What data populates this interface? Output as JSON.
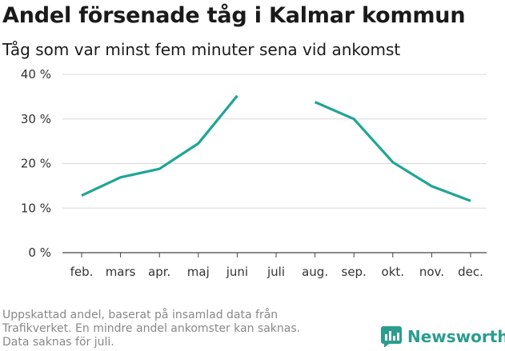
{
  "header": {
    "title": "Andel försenade tåg i Kalmar kommun",
    "subtitle": "Tåg som var minst fem minuter sena vid ankomst"
  },
  "footnote": {
    "lines": [
      "Uppskattad andel, baserat på insamlad data från",
      "Trafikverket. En mindre andel ankomster kan saknas.",
      "Data saknas för juli."
    ]
  },
  "brand": {
    "name": "Newsworthy",
    "icon": "bar-chart-icon",
    "color": "#2a9d8f"
  },
  "chart_data": {
    "type": "line",
    "categories": [
      "feb.",
      "mars",
      "apr.",
      "maj",
      "juni",
      "juli",
      "aug.",
      "sep.",
      "okt.",
      "nov.",
      "dec."
    ],
    "series": [
      {
        "values": [
          12.8,
          16.9,
          18.8,
          24.5,
          35.2,
          null,
          33.8,
          30.0,
          20.3,
          14.9,
          11.6
        ],
        "color": "#1fa595"
      }
    ],
    "yticks": [
      0,
      10,
      20,
      30,
      40
    ],
    "ytick_labels": [
      "0 %",
      "10 %",
      "20 %",
      "30 %",
      "40 %"
    ],
    "ylim": [
      0,
      40
    ],
    "grid": true
  }
}
